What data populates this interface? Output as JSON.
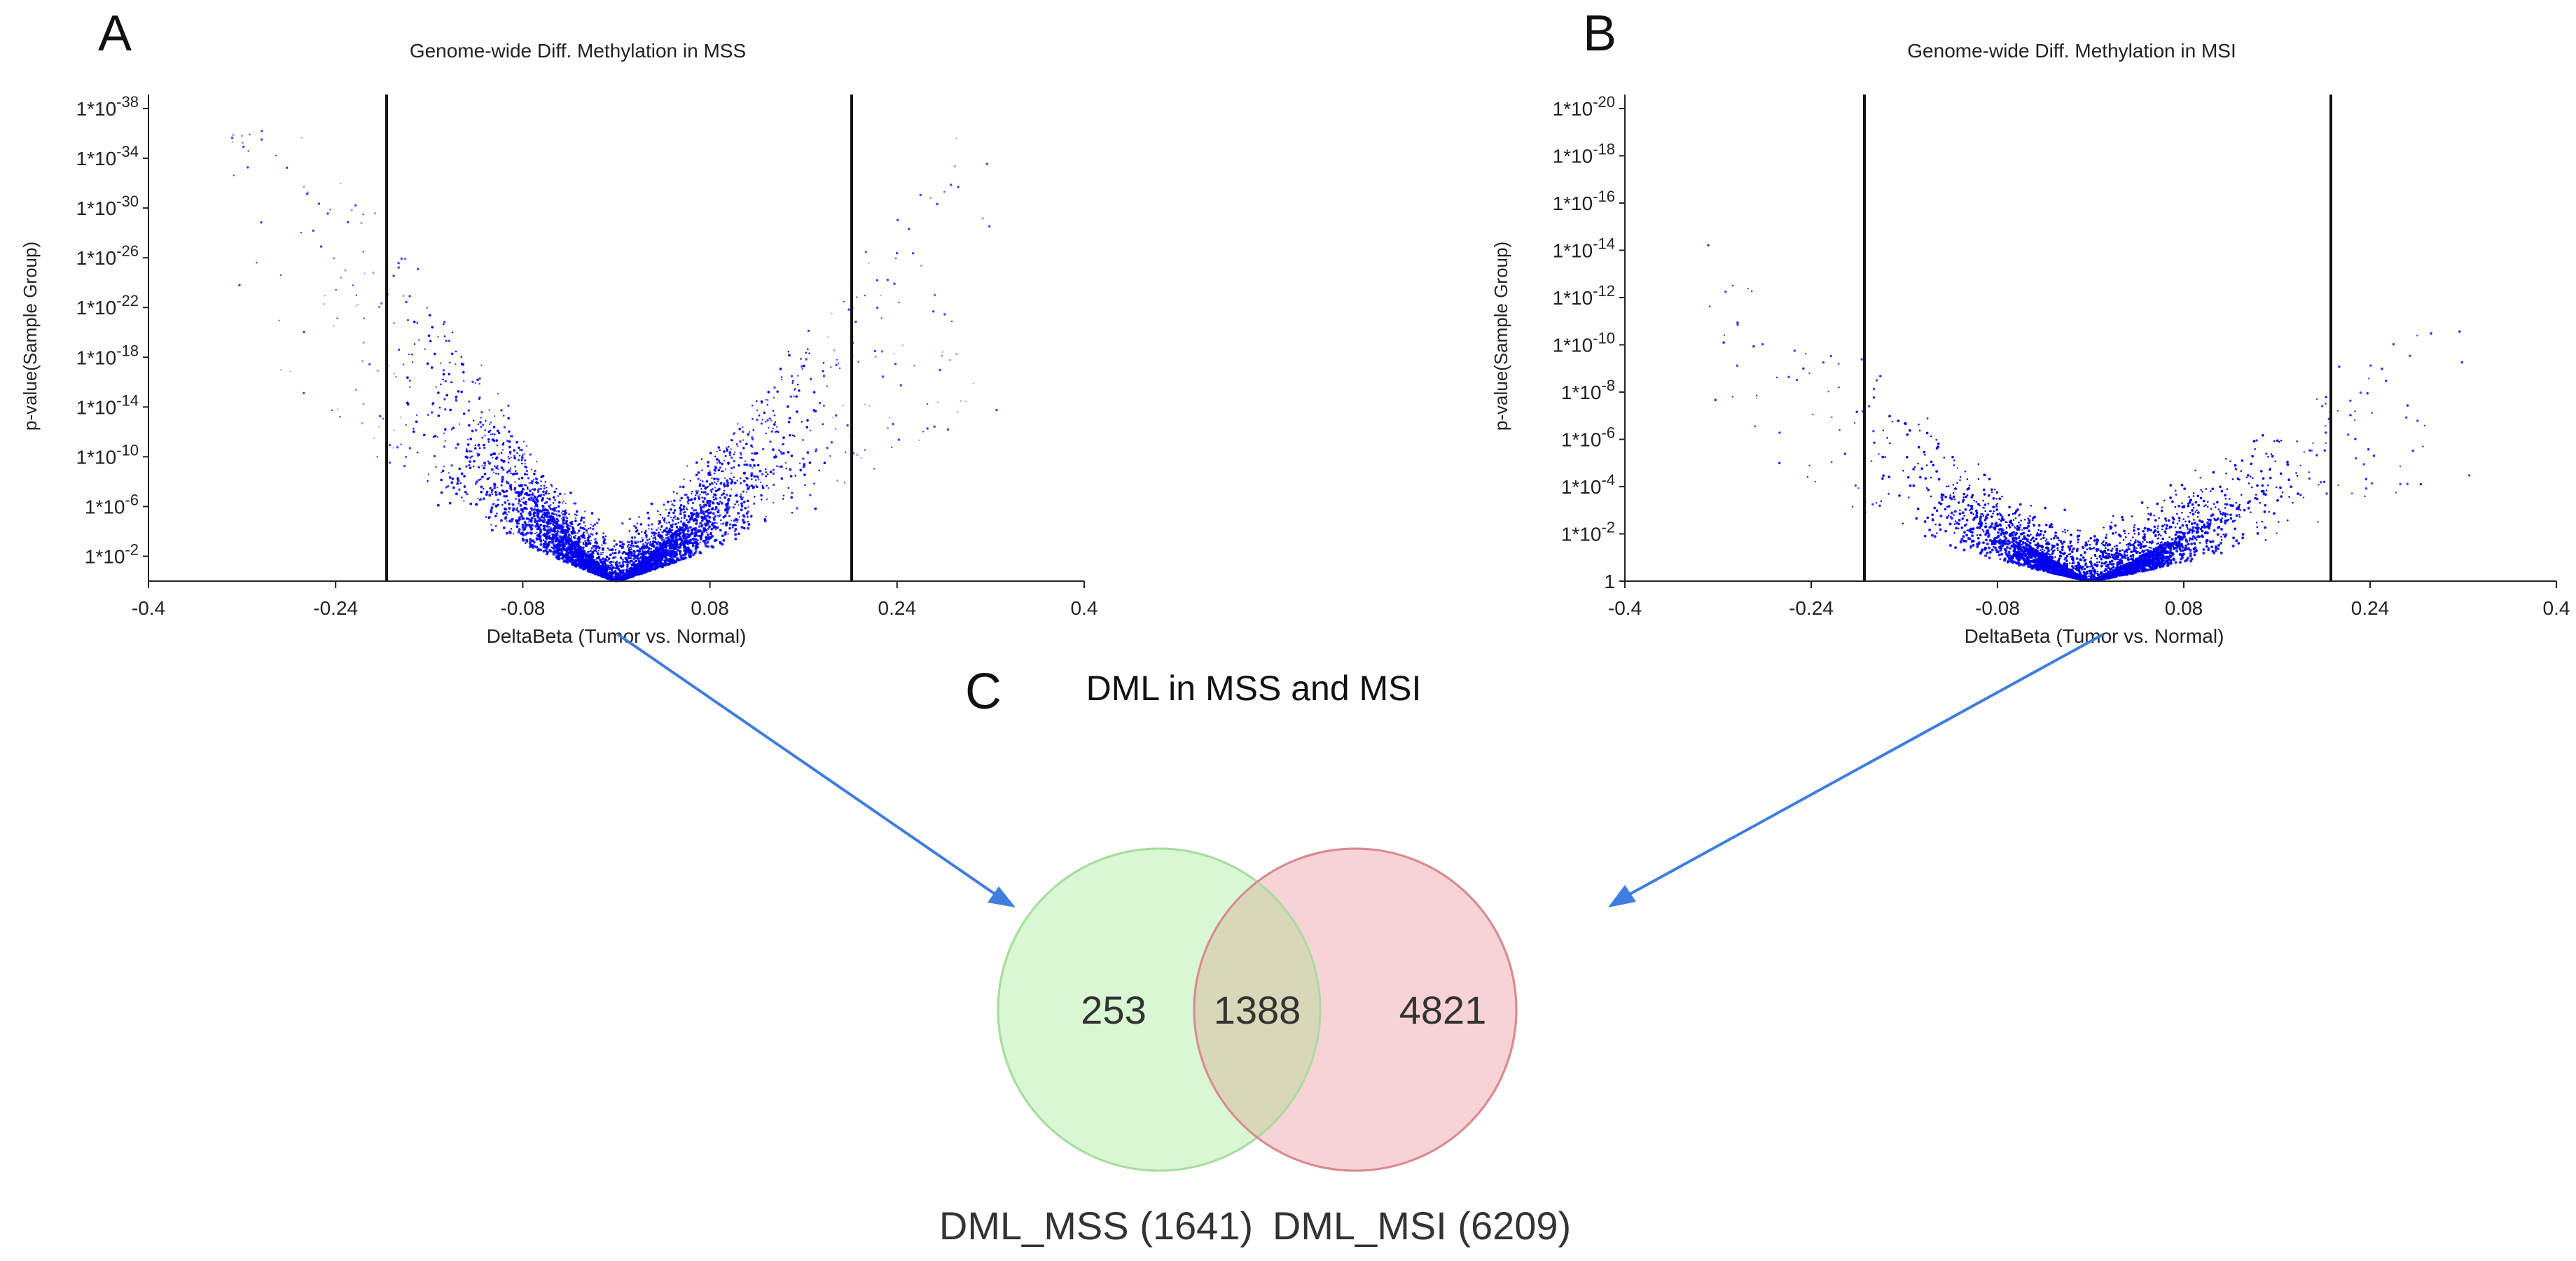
{
  "chart_data": [
    {
      "panel": "A",
      "type": "scatter",
      "title": "Genome-wide Diff. Methylation in MSS",
      "xlabel": "DeltaBeta (Tumor vs. Normal)",
      "ylabel": "p-value(Sample Group)",
      "xlim": [
        -0.4,
        0.4
      ],
      "x_ticks": [
        "-0.4",
        "-0.24",
        "-0.08",
        "0.08",
        "0.24",
        "0.4"
      ],
      "x_tick_values": [
        -0.4,
        -0.24,
        -0.08,
        0.08,
        0.24,
        0.4
      ],
      "ylim_neglog10": [
        0,
        38
      ],
      "y_ticks": [
        {
          "base": "1*10",
          "exp": "-2",
          "neglog10": 2
        },
        {
          "base": "1*10",
          "exp": "-6",
          "neglog10": 6
        },
        {
          "base": "1*10",
          "exp": "-10",
          "neglog10": 10
        },
        {
          "base": "1*10",
          "exp": "-14",
          "neglog10": 14
        },
        {
          "base": "1*10",
          "exp": "-18",
          "neglog10": 18
        },
        {
          "base": "1*10",
          "exp": "-22",
          "neglog10": 22
        },
        {
          "base": "1*10",
          "exp": "-26",
          "neglog10": 26
        },
        {
          "base": "1*10",
          "exp": "-30",
          "neglog10": 30
        },
        {
          "base": "1*10",
          "exp": "-34",
          "neglog10": 34
        },
        {
          "base": "1*10",
          "exp": "-38",
          "neglog10": 38
        }
      ],
      "thresholds": [
        -0.2,
        0.2
      ],
      "point_color": "#0000ee",
      "density_shape": {
        "left_slope": 160,
        "right_slope": 135,
        "spread": 2.6
      }
    },
    {
      "panel": "B",
      "type": "scatter",
      "title": "Genome-wide Diff. Methylation in MSI",
      "xlabel": "DeltaBeta (Tumor vs. Normal)",
      "ylabel": "p-value(Sample Group)",
      "xlim": [
        -0.4,
        0.4
      ],
      "x_ticks": [
        "-0.4",
        "-0.24",
        "-0.08",
        "0.08",
        "0.24",
        "0.4"
      ],
      "x_tick_values": [
        -0.4,
        -0.24,
        -0.08,
        0.08,
        0.24,
        0.4
      ],
      "ylim_neglog10": [
        0,
        20
      ],
      "y_ticks": [
        {
          "base": "1",
          "exp": "",
          "neglog10": 0
        },
        {
          "base": "1*10",
          "exp": "-2",
          "neglog10": 2
        },
        {
          "base": "1*10",
          "exp": "-4",
          "neglog10": 4
        },
        {
          "base": "1*10",
          "exp": "-6",
          "neglog10": 6
        },
        {
          "base": "1*10",
          "exp": "-8",
          "neglog10": 8
        },
        {
          "base": "1*10",
          "exp": "-10",
          "neglog10": 10
        },
        {
          "base": "1*10",
          "exp": "-12",
          "neglog10": 12
        },
        {
          "base": "1*10",
          "exp": "-14",
          "neglog10": 14
        },
        {
          "base": "1*10",
          "exp": "-16",
          "neglog10": 16
        },
        {
          "base": "1*10",
          "exp": "-18",
          "neglog10": 18
        },
        {
          "base": "1*10",
          "exp": "-20",
          "neglog10": 20
        }
      ],
      "thresholds": [
        -0.22,
        0.22
      ],
      "point_color": "#0000ee",
      "density_shape": {
        "left_slope": 48,
        "right_slope": 42,
        "spread": 1.6
      }
    },
    {
      "panel": "C",
      "type": "venn",
      "title": "DML in MSS and MSI",
      "sets": [
        {
          "name": "DML_MSS (1641)",
          "total": 1641,
          "only": 253,
          "color": "#d9f7d2",
          "edge": "#a8dca0"
        },
        {
          "name": "DML_MSI (6209)",
          "total": 6209,
          "only": 4821,
          "color": "#f8d3d6",
          "edge": "#e09097"
        }
      ],
      "intersection": 1388,
      "overlap_color": "#d8d7b8",
      "arrow_color": "#3f7ddf"
    }
  ],
  "labels": {
    "panel_a": "A",
    "panel_b": "B",
    "panel_c": "C"
  }
}
